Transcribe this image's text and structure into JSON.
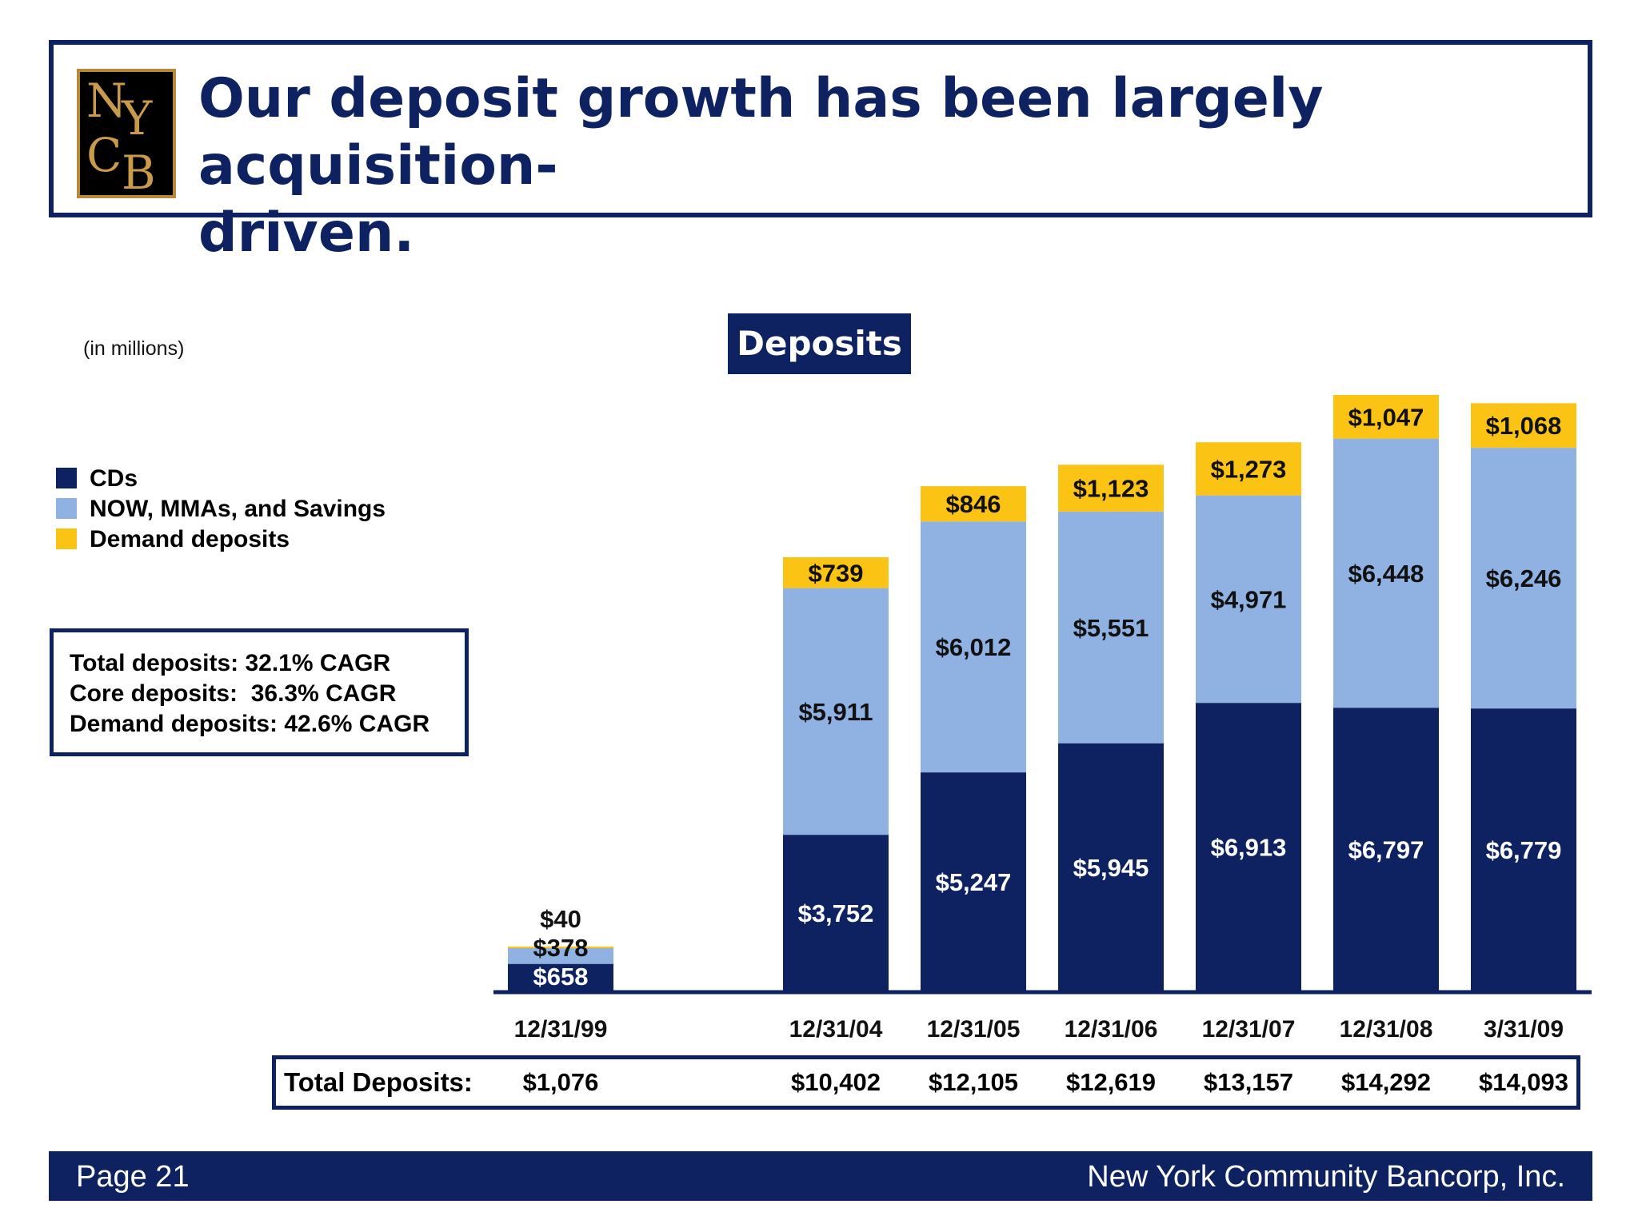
{
  "header": {
    "title": "Our deposit growth has been largely acquisition-driven.",
    "title_line1": "Our deposit growth has been largely acquisition-",
    "title_line2": "driven.",
    "logo_text": "NYCB"
  },
  "units_note": "(in millions)",
  "legend": [
    {
      "label": "CDs",
      "color": "#0e2262"
    },
    {
      "label": "NOW, MMAs, and Savings",
      "color": "#8fb2e2"
    },
    {
      "label": "Demand deposits",
      "color": "#fbc314"
    }
  ],
  "cagr": [
    "Total deposits: 32.1% CAGR",
    "Core deposits:  36.3% CAGR",
    "Demand deposits: 42.6% CAGR"
  ],
  "chart_data": {
    "type": "bar",
    "stacked": true,
    "title": "Deposits",
    "categories": [
      "12/31/99",
      "12/31/04",
      "12/31/05",
      "12/31/06",
      "12/31/07",
      "12/31/08",
      "3/31/09"
    ],
    "series": [
      {
        "name": "CDs",
        "color": "#0e2262",
        "values": [
          658,
          3752,
          5247,
          5945,
          6913,
          6797,
          6779
        ],
        "labels": [
          "$658",
          "$3,752",
          "$5,247",
          "$5,945",
          "$6,913",
          "$6,797",
          "$6,779"
        ]
      },
      {
        "name": "NOW, MMAs, and Savings",
        "color": "#8fb2e2",
        "values": [
          378,
          5911,
          6012,
          5551,
          4971,
          6448,
          6246
        ],
        "labels": [
          "$378",
          "$5,911",
          "$6,012",
          "$5,551",
          "$4,971",
          "$6,448",
          "$6,246"
        ]
      },
      {
        "name": "Demand deposits",
        "color": "#fbc314",
        "values": [
          40,
          739,
          846,
          1123,
          1273,
          1047,
          1068
        ],
        "labels": [
          "$40",
          "$739",
          "$846",
          "$1,123",
          "$1,273",
          "$1,047",
          "$1,068"
        ]
      }
    ],
    "ylim": [
      0,
      14500
    ],
    "grid": false,
    "legend": "left"
  },
  "totals": {
    "label": "Total Deposits:",
    "values": [
      "$1,076",
      "$10,402",
      "$12,105",
      "$12,619",
      "$13,157",
      "$14,292",
      "$14,093"
    ]
  },
  "footer": {
    "page": "Page 21",
    "company": "New York Community Bancorp, Inc."
  }
}
